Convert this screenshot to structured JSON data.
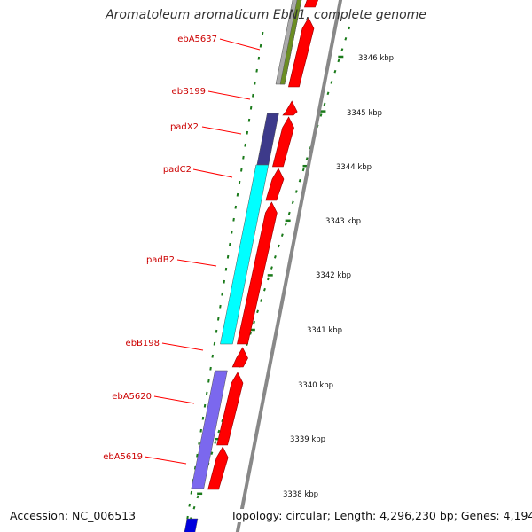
{
  "title": "Aromatoleum aromaticum EbN1, complete genome",
  "footer": {
    "accession": "Accession: NC_006513",
    "summary": "Topology: circular; Length: 4,296,230 bp; Genes: 4,194"
  },
  "ruler_labels": [
    "3346 kbp",
    "3345 kbp",
    "3344 kbp",
    "3343 kbp",
    "3342 kbp",
    "3341 kbp",
    "3340 kbp",
    "3339 kbp",
    "3338 kbp"
  ],
  "gene_labels": [
    "ebA5637",
    "ebB199",
    "padX2",
    "padC2",
    "padB2",
    "ebB198",
    "ebA5620",
    "ebA5619"
  ],
  "colors": {
    "cds": "#ff0000",
    "label": "#cc0000",
    "ruler": "#1a7a1a",
    "cyan": "#00ffff",
    "purple": "#3d3a8a",
    "lavender": "#7b68ee",
    "olive": "#6b8e23",
    "grey": "#aaaaaa",
    "blue": "#0000dd"
  }
}
